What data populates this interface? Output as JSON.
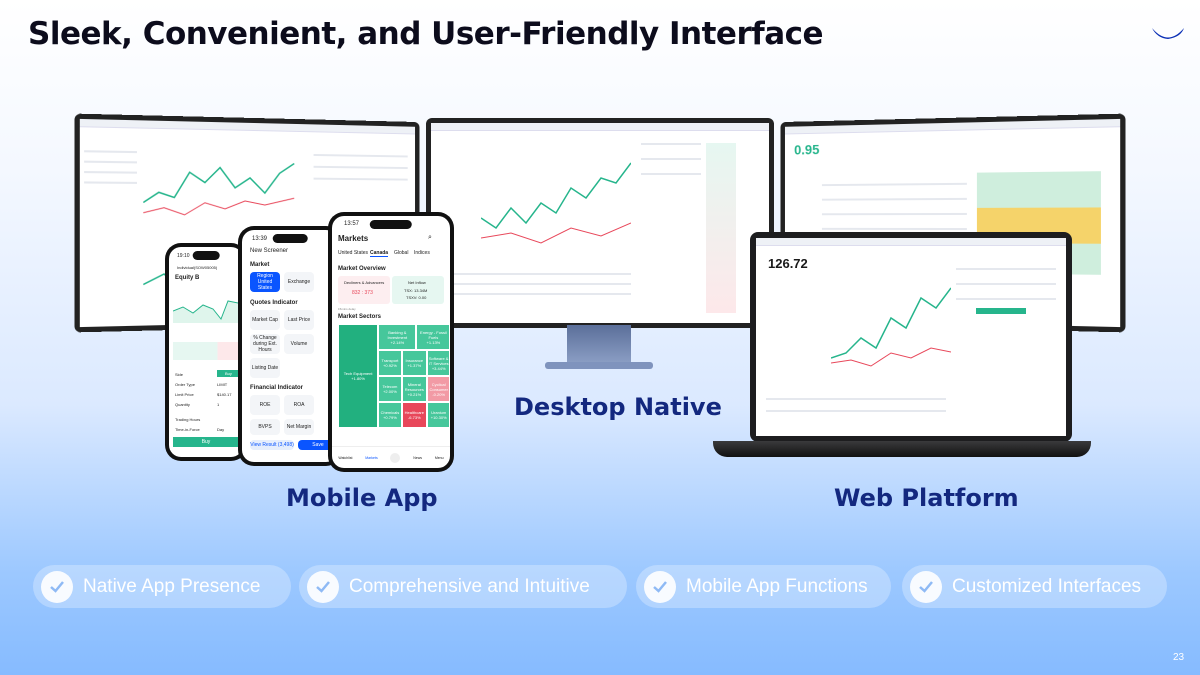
{
  "title": "Sleek, Convenient, and User-Friendly Interface",
  "labels": {
    "desktop": "Desktop Native",
    "mobile": "Mobile App",
    "web": "Web Platform"
  },
  "features": [
    "Native App Presence",
    "Comprehensive and Intuitive",
    "Mobile App Functions",
    "Customized Interfaces"
  ],
  "page_number": "23",
  "colors": {
    "title": "#0c0c1c",
    "label": "#13287f",
    "accent_green": "#26b58c",
    "accent_red": "#e8475a",
    "brand_blue": "#0a2fb5"
  },
  "phone_trade": {
    "time": "19:10",
    "account": "Individual(SOW05005)",
    "symbol": "Equity B",
    "side_label": "Side",
    "side": "Buy",
    "order_type_label": "Order Type",
    "order_type": "LIMIT",
    "limit_price_label": "Limit Price",
    "limit_price": "$140.17",
    "quantity_label": "Quantity",
    "quantity": "1",
    "trading_hours_label": "Trading Hours",
    "time_in_force_label": "Time-in-Force",
    "time_in_force": "Day",
    "buy_button": "Buy"
  },
  "phone_screener": {
    "time": "13:39",
    "header": "New Screener",
    "market_section": "Market",
    "region": "Region United States",
    "exchange": "Exchange",
    "quotes_section": "Quotes Indicator",
    "quotes": [
      "Market Cap",
      "Last Price",
      "% Change during Ext. Hours",
      "Volume",
      "Listing Date"
    ],
    "financial_section": "Financial Indicator",
    "financial": [
      "ROE",
      "ROA",
      "BVPS",
      "Net Margin"
    ],
    "view_result": "View Result (3,498)",
    "save": "Save"
  },
  "phone_markets": {
    "time": "13:57",
    "header": "Markets",
    "tabs": [
      "United States",
      "Canada",
      "Global",
      "Indices"
    ],
    "active_tab": "Canada",
    "overview": "Market Overview",
    "decliners_label": "Decliners & Advancers",
    "decliners_value": "832 : 373",
    "inflow_label": "Net Inflow",
    "tsx": "TSX: 13.34M",
    "tsxv": "TSXV: 0.00",
    "delay": "15mins delay",
    "sectors_title": "Market Sectors",
    "sectors": [
      {
        "name": "Tech Equipment",
        "change": "+1.80%"
      },
      {
        "name": "Banking & Investment",
        "change": "+2.14%"
      },
      {
        "name": "Energy - Fossil Fuels",
        "change": "+1.13%"
      },
      {
        "name": "Transport",
        "change": "+0.92%"
      },
      {
        "name": "Insurance",
        "change": "+1.37%"
      },
      {
        "name": "Software & IT Services",
        "change": "+3.44%"
      },
      {
        "name": "Telecom",
        "change": "+2.00%"
      },
      {
        "name": "Mineral Resources",
        "change": "+0.21%"
      },
      {
        "name": "Cyclical Consumer",
        "change": "-0.20%"
      },
      {
        "name": "Chemicals",
        "change": "+0.79%"
      },
      {
        "name": "Healthcare",
        "change": "-6.73%"
      },
      {
        "name": "Uranium",
        "change": "+10.30%"
      }
    ],
    "nav": [
      "Watchlist",
      "Markets",
      "",
      "News",
      "Menu"
    ]
  }
}
